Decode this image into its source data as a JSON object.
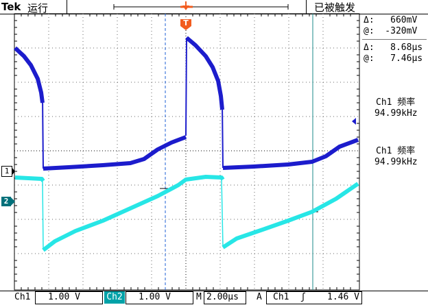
{
  "header": {
    "brand": "Tek",
    "run_state": "运行",
    "trigger_state": "已被触发"
  },
  "trigger_marker": "T",
  "channel_markers": {
    "ch1": "1",
    "ch2": "2"
  },
  "cursor_readouts": {
    "amp_delta": "Δ:   660mV",
    "amp_at": "@:  -320mV",
    "time_delta": "Δ:   8.68μs",
    "time_at": "@:   7.46μs"
  },
  "measurements": [
    {
      "label": "Ch1 频率",
      "value": "94.99kHz"
    },
    {
      "label": "Ch1 频率",
      "value": "94.99kHz"
    }
  ],
  "footer": {
    "ch1_label": "Ch1",
    "ch1_scale": "1.00 V",
    "ch2_label": "Ch2",
    "ch2_scale": "1.00 V",
    "timebase_label": "M",
    "timebase": "2.00μs",
    "acq_mode": "A",
    "trigger_source": "Ch1",
    "trigger_slope": "ʃ",
    "trigger_level": "1.46 V"
  },
  "colors": {
    "ch1": "#1c1ccc",
    "ch2": "#27e6e6",
    "trigger": "#f25c1f",
    "vcursor": "#1e5fd6",
    "vcursor2": "#1a8a8a",
    "ch2_tag": "#00a2a8"
  },
  "icons": {
    "trigger_marker": "trigger-t-icon",
    "trigger_level_arrow": "left-arrow-icon"
  }
}
